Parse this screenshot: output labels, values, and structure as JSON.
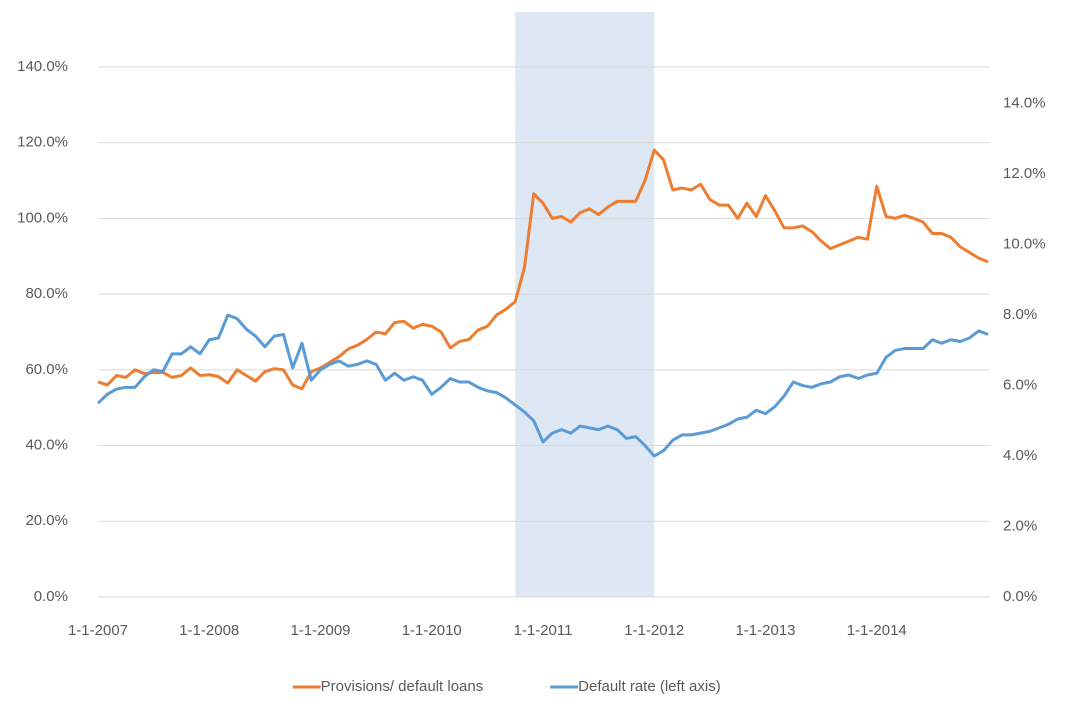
{
  "chart_data": {
    "type": "line",
    "x": [
      "2007-01-01",
      "2007-02-01",
      "2007-03-01",
      "2007-04-01",
      "2007-05-01",
      "2007-06-01",
      "2007-07-01",
      "2007-08-01",
      "2007-09-01",
      "2007-10-01",
      "2007-11-01",
      "2007-12-01",
      "2008-01-01",
      "2008-02-01",
      "2008-03-01",
      "2008-04-01",
      "2008-05-01",
      "2008-06-01",
      "2008-07-01",
      "2008-08-01",
      "2008-09-01",
      "2008-10-01",
      "2008-11-01",
      "2008-12-01",
      "2009-01-01",
      "2009-02-01",
      "2009-03-01",
      "2009-04-01",
      "2009-05-01",
      "2009-06-01",
      "2009-07-01",
      "2009-08-01",
      "2009-09-01",
      "2009-10-01",
      "2009-11-01",
      "2009-12-01",
      "2010-01-01",
      "2010-02-01",
      "2010-03-01",
      "2010-04-01",
      "2010-05-01",
      "2010-06-01",
      "2010-07-01",
      "2010-08-01",
      "2010-09-01",
      "2010-10-01",
      "2010-11-01",
      "2010-12-01",
      "2011-01-01",
      "2011-02-01",
      "2011-03-01",
      "2011-04-01",
      "2011-05-01",
      "2011-06-01",
      "2011-07-01",
      "2011-08-01",
      "2011-09-01",
      "2011-10-01",
      "2011-11-01",
      "2011-12-01",
      "2012-01-01",
      "2012-02-01",
      "2012-03-01",
      "2012-04-01",
      "2012-05-01",
      "2012-06-01",
      "2012-07-01",
      "2012-08-01",
      "2012-09-01",
      "2012-10-01",
      "2012-11-01",
      "2012-12-01",
      "2013-01-01",
      "2013-02-01",
      "2013-03-01",
      "2013-04-01",
      "2013-05-01",
      "2013-06-01",
      "2013-07-01",
      "2013-08-01",
      "2013-09-01",
      "2013-10-01",
      "2013-11-01",
      "2013-12-01",
      "2014-01-01",
      "2014-02-01",
      "2014-03-01",
      "2014-04-01",
      "2014-05-01",
      "2014-06-01",
      "2014-07-01",
      "2014-08-01",
      "2014-09-01",
      "2014-10-01",
      "2014-11-01",
      "2014-12-01",
      "2015-01-01"
    ],
    "series": [
      {
        "name": "Provisions/ default loans",
        "color": "#ed7d31",
        "values": [
          56.8,
          56.0,
          58.5,
          58.0,
          60.0,
          59.0,
          59.3,
          59.3,
          58.0,
          58.5,
          60.5,
          58.5,
          58.7,
          58.2,
          56.5,
          60.0,
          58.5,
          57.0,
          59.5,
          60.3,
          60.0,
          56.0,
          55.0,
          59.5,
          60.5,
          62.0,
          63.5,
          65.5,
          66.5,
          68.0,
          70.0,
          69.5,
          72.5,
          72.8,
          71.0,
          72.0,
          71.5,
          70.0,
          65.8,
          67.5,
          68.0,
          70.5,
          71.5,
          74.5,
          76.0,
          78.0,
          87.0,
          106.5,
          104.0,
          100.0,
          100.5,
          99.0,
          101.5,
          102.5,
          101.0,
          103.0,
          104.5,
          104.5,
          104.5,
          110.0,
          118.0,
          115.5,
          107.5,
          108.0,
          107.5,
          109.0,
          105.0,
          103.5,
          103.5,
          100.0,
          104.0,
          100.5,
          106.0,
          102.0,
          97.5,
          97.5,
          98.0,
          96.5,
          94.0,
          92.0,
          93.0,
          94.0,
          95.0,
          94.5,
          108.5,
          100.5,
          100.0,
          100.8,
          100.0,
          99.0,
          96.0,
          96.0,
          95.0,
          92.5,
          91.0,
          89.5,
          88.5
        ]
      },
      {
        "name": "Default rate (left axis)",
        "color": "#5b9bd5",
        "axis": "y2",
        "values": [
          5.5,
          5.75,
          5.9,
          5.95,
          5.95,
          6.25,
          6.45,
          6.4,
          6.9,
          6.9,
          7.1,
          6.9,
          7.3,
          7.35,
          8.0,
          7.9,
          7.6,
          7.4,
          7.1,
          7.4,
          7.45,
          6.5,
          7.2,
          6.15,
          6.45,
          6.6,
          6.7,
          6.55,
          6.6,
          6.7,
          6.6,
          6.15,
          6.35,
          6.15,
          6.25,
          6.15,
          5.75,
          5.95,
          6.2,
          6.1,
          6.1,
          5.95,
          5.85,
          5.8,
          5.65,
          5.45,
          5.25,
          5.0,
          4.4,
          4.65,
          4.75,
          4.65,
          4.85,
          4.8,
          4.75,
          4.85,
          4.75,
          4.5,
          4.55,
          4.3,
          4.0,
          4.15,
          4.45,
          4.6,
          4.6,
          4.65,
          4.7,
          4.8,
          4.9,
          5.05,
          5.1,
          5.3,
          5.2,
          5.4,
          5.7,
          6.1,
          6.0,
          5.95,
          6.05,
          6.1,
          6.25,
          6.3,
          6.2,
          6.3,
          6.35,
          6.8,
          7.0,
          7.05,
          7.05,
          7.05,
          7.3,
          7.2,
          7.3,
          7.25,
          7.35,
          7.55,
          7.45
        ]
      }
    ],
    "xlim": [
      "2007-01-01",
      "2015-01-01"
    ],
    "xticks": [
      {
        "value": "2007-01-01",
        "label": "1-1-2007"
      },
      {
        "value": "2008-01-01",
        "label": "1-1-2008"
      },
      {
        "value": "2009-01-01",
        "label": "1-1-2009"
      },
      {
        "value": "2010-01-01",
        "label": "1-1-2010"
      },
      {
        "value": "2011-01-01",
        "label": "1-1-2011"
      },
      {
        "value": "2012-01-01",
        "label": "1-1-2012"
      },
      {
        "value": "2013-01-01",
        "label": "1-1-2013"
      },
      {
        "value": "2014-01-01",
        "label": "1-1-2014"
      }
    ],
    "ylim": [
      0,
      154.5
    ],
    "yticks": [
      {
        "value": 0,
        "label": "0.0%"
      },
      {
        "value": 20,
        "label": "20.0%"
      },
      {
        "value": 40,
        "label": "40.0%"
      },
      {
        "value": 60,
        "label": "60.0%"
      },
      {
        "value": 80,
        "label": "80.0%"
      },
      {
        "value": 100,
        "label": "100.0%"
      },
      {
        "value": 120,
        "label": "120.0%"
      },
      {
        "value": 140,
        "label": "140.0%"
      }
    ],
    "y2lim": [
      0,
      16.6
    ],
    "y2ticks": [
      {
        "value": 0,
        "label": "0.0%"
      },
      {
        "value": 2,
        "label": "2.0%"
      },
      {
        "value": 4,
        "label": "4.0%"
      },
      {
        "value": 6,
        "label": "6.0%"
      },
      {
        "value": 8,
        "label": "8.0%"
      },
      {
        "value": 10,
        "label": "10.0%"
      },
      {
        "value": 12,
        "label": "12.0%"
      },
      {
        "value": 14,
        "label": "14.0%"
      }
    ],
    "grid": true,
    "legend": "bottom",
    "shaded_region": {
      "x": [
        "2010-10-01",
        "2012-01-01"
      ],
      "color": "#dee8f5"
    }
  }
}
